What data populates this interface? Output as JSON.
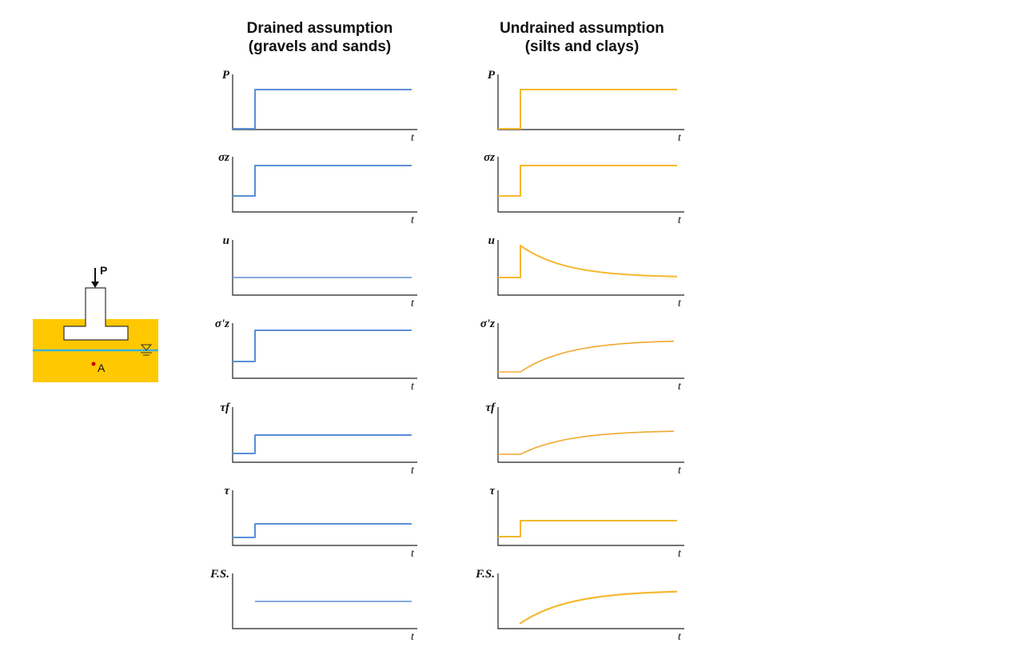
{
  "columns": {
    "drained": {
      "title_line1": "Drained assumption",
      "title_line2": "(gravels and sands)",
      "color": "#5b8ed6"
    },
    "undrained": {
      "title_line1": "Undrained assumption",
      "title_line2": "(silts and clays)",
      "color": "#f5b82e",
      "color_light": "#f0a830"
    }
  },
  "diagram": {
    "load_label": "P",
    "point_label": "A",
    "soil_color": "#ffc800",
    "water_color": "#3ab4d8",
    "point_color": "#cc0000"
  },
  "rows": [
    {
      "id": "P",
      "label": "P"
    },
    {
      "id": "sigma_z",
      "label": "σz"
    },
    {
      "id": "u",
      "label": "u"
    },
    {
      "id": "sigma_eff_z",
      "label": "σ'z"
    },
    {
      "id": "tau_f",
      "label": "τf"
    },
    {
      "id": "tau",
      "label": "τ"
    },
    {
      "id": "FS",
      "label": "F.S."
    }
  ],
  "time_label": "t"
}
